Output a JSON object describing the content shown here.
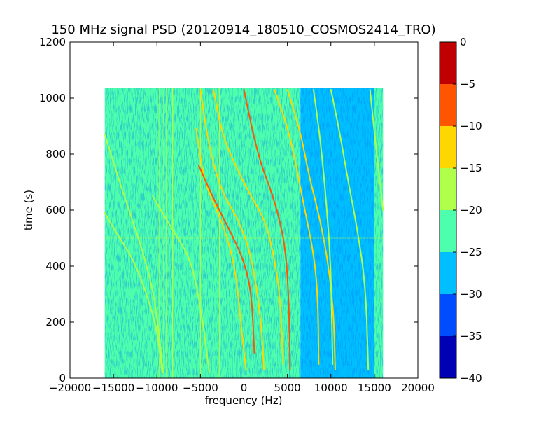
{
  "chart_data": {
    "type": "heatmap",
    "title": "150 MHz signal PSD (20120914_180510_COSMOS2414_TRO)",
    "xlabel": "frequency (Hz)",
    "ylabel": "time (s)",
    "xlim": [
      -20000,
      20000
    ],
    "ylim": [
      0,
      1200
    ],
    "x_ticks": [
      -20000,
      -15000,
      -10000,
      -5000,
      0,
      5000,
      10000,
      15000,
      20000
    ],
    "x_tick_labels": [
      "−20000",
      "−15000",
      "−10000",
      "−5000",
      "0",
      "5000",
      "10000",
      "15000",
      "20000"
    ],
    "y_ticks": [
      0,
      200,
      400,
      600,
      800,
      1000,
      1200
    ],
    "y_tick_labels": [
      "0",
      "200",
      "400",
      "600",
      "800",
      "1000",
      "1200"
    ],
    "data_extent": {
      "x": [
        -16000,
        16000
      ],
      "y": [
        0,
        1035
      ]
    },
    "background_level_by_freq": [
      {
        "from": -16000,
        "to": 6500,
        "level": -22
      },
      {
        "from": 6500,
        "to": 15000,
        "level": -27
      },
      {
        "from": 15000,
        "to": 16000,
        "level": -22
      }
    ],
    "colorbar": {
      "range": [
        -40,
        0
      ],
      "boundaries": [
        -40,
        -35,
        -30,
        -25,
        -20,
        -15,
        -10,
        -5,
        0
      ],
      "tick_labels": [
        "0",
        "−5",
        "−10",
        "−15",
        "−20",
        "−25",
        "−30",
        "−35",
        "−40"
      ],
      "colors": [
        "#0000b5",
        "#004cff",
        "#00bfff",
        "#4dffad",
        "#b0ff4a",
        "#ffd700",
        "#ff5500",
        "#c00000"
      ]
    },
    "signal_traces": [
      {
        "level": -15,
        "points": [
          [
            -16000,
            590
          ],
          [
            -14500,
            510
          ],
          [
            -13000,
            440
          ],
          [
            -11500,
            330
          ],
          [
            -10000,
            180
          ],
          [
            -9400,
            20
          ]
        ]
      },
      {
        "level": -15,
        "points": [
          [
            -16000,
            870
          ],
          [
            -14500,
            720
          ],
          [
            -13000,
            580
          ],
          [
            -11500,
            440
          ],
          [
            -10200,
            280
          ],
          [
            -9300,
            20
          ]
        ]
      },
      {
        "level": -15,
        "points": [
          [
            -10500,
            650
          ],
          [
            -8000,
            520
          ],
          [
            -6000,
            420
          ],
          [
            -4700,
            200
          ],
          [
            -4000,
            20
          ]
        ]
      },
      {
        "level": -12,
        "points": [
          [
            -5500,
            890
          ],
          [
            -4500,
            690
          ],
          [
            -2500,
            560
          ],
          [
            -1000,
            400
          ],
          [
            -300,
            180
          ],
          [
            250,
            30
          ]
        ]
      },
      {
        "level": -12,
        "points": [
          [
            -5000,
            1030
          ],
          [
            -4000,
            820
          ],
          [
            -2500,
            660
          ],
          [
            -500,
            560
          ],
          [
            1000,
            420
          ],
          [
            2000,
            200
          ],
          [
            2300,
            30
          ]
        ]
      },
      {
        "level": -8,
        "points": [
          [
            -5200,
            760
          ],
          [
            -3500,
            640
          ],
          [
            -1500,
            520
          ],
          [
            0,
            420
          ],
          [
            900,
            300
          ],
          [
            1200,
            90
          ]
        ]
      },
      {
        "level": -12,
        "points": [
          [
            -3500,
            1030
          ],
          [
            -2500,
            870
          ],
          [
            -1000,
            760
          ],
          [
            800,
            650
          ],
          [
            2500,
            560
          ],
          [
            3500,
            430
          ],
          [
            4200,
            280
          ],
          [
            4500,
            50
          ]
        ]
      },
      {
        "level": -8,
        "points": [
          [
            0,
            1030
          ],
          [
            1000,
            880
          ],
          [
            2000,
            760
          ],
          [
            3000,
            680
          ],
          [
            4000,
            580
          ],
          [
            4800,
            460
          ],
          [
            5200,
            260
          ],
          [
            5300,
            30
          ]
        ]
      },
      {
        "level": -12,
        "points": [
          [
            3500,
            1030
          ],
          [
            5000,
            900
          ],
          [
            6000,
            760
          ],
          [
            7000,
            600
          ],
          [
            8000,
            450
          ],
          [
            8500,
            300
          ],
          [
            8600,
            50
          ]
        ]
      },
      {
        "level": -12,
        "points": [
          [
            5000,
            1030
          ],
          [
            6500,
            880
          ],
          [
            7500,
            720
          ],
          [
            8500,
            600
          ],
          [
            9500,
            450
          ],
          [
            10300,
            250
          ],
          [
            10500,
            30
          ]
        ]
      },
      {
        "level": -15,
        "points": [
          [
            10000,
            1030
          ],
          [
            11000,
            880
          ],
          [
            12000,
            700
          ],
          [
            13000,
            540
          ],
          [
            14000,
            330
          ],
          [
            14300,
            30
          ]
        ]
      },
      {
        "level": -15,
        "points": [
          [
            8000,
            1030
          ],
          [
            8800,
            850
          ],
          [
            9500,
            620
          ],
          [
            10000,
            400
          ],
          [
            10200,
            50
          ]
        ]
      },
      {
        "level": -15,
        "points": [
          [
            14500,
            1030
          ],
          [
            15200,
            820
          ],
          [
            16000,
            600
          ]
        ]
      }
    ],
    "vertical_lines": [
      {
        "x": -9700,
        "level": -15
      },
      {
        "x": -9200,
        "level": -15
      },
      {
        "x": -8900,
        "level": -15
      },
      {
        "x": -8200,
        "level": -15
      },
      {
        "x": -5000,
        "level": -15
      },
      {
        "x": -2800,
        "level": -15
      }
    ],
    "horizontal_lines": [
      {
        "y": 500,
        "x": [
          -16000,
          16000
        ],
        "level": -18
      }
    ]
  }
}
